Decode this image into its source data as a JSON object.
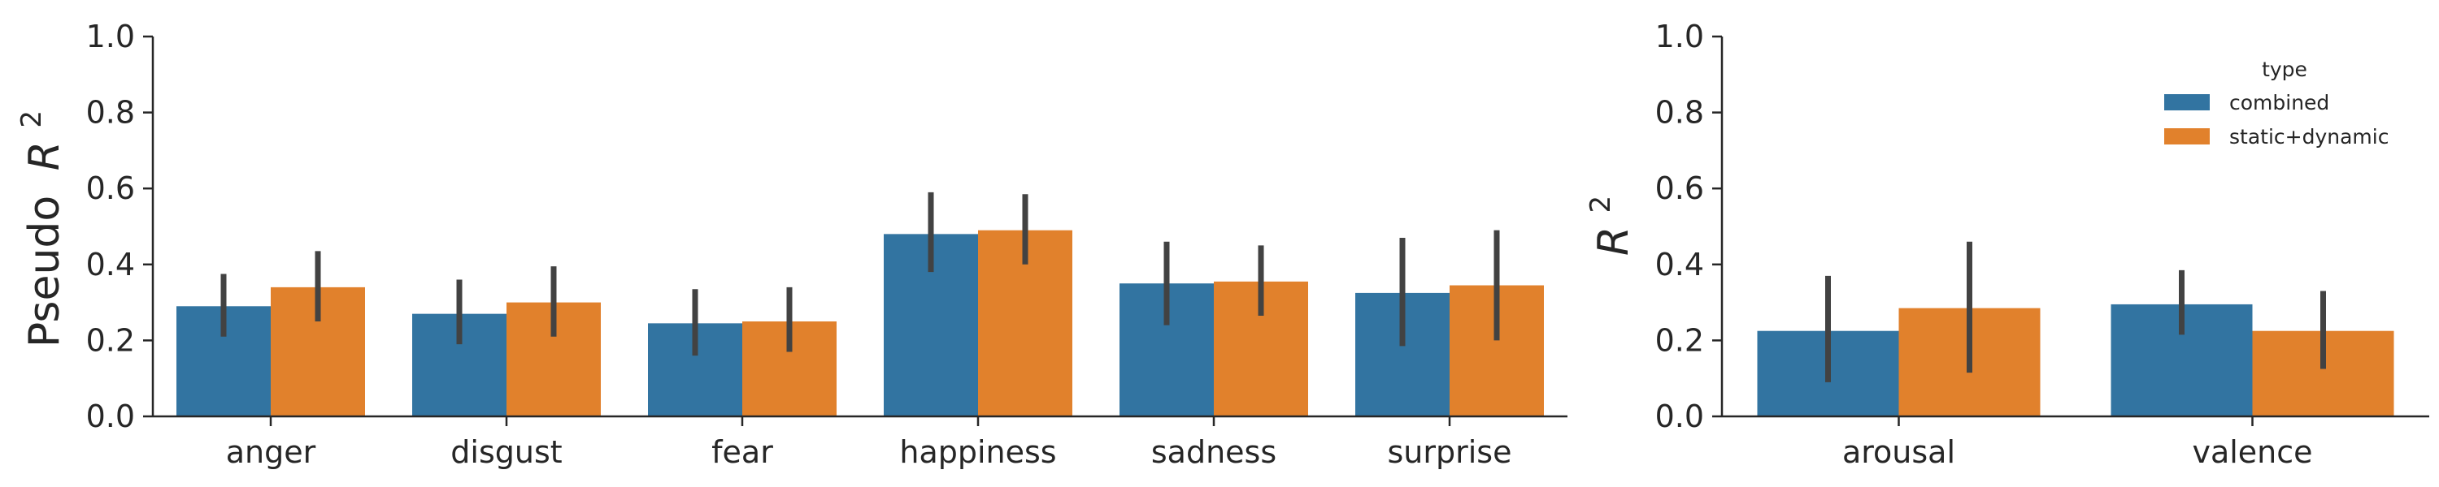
{
  "colors": {
    "combined": "#3274a1",
    "static_dynamic": "#e1812c",
    "errorbar": "#424242",
    "axis": "#262626"
  },
  "chart_data": [
    {
      "type": "bar",
      "title": "",
      "xlabel": "",
      "ylabel": "Pseudo",
      "ylabel_math": "R",
      "ylabel_sup": "2",
      "ylim": [
        0,
        1.0
      ],
      "yticks": [
        "0.0",
        "0.2",
        "0.4",
        "0.6",
        "0.8",
        "1.0"
      ],
      "grid": false,
      "categories": [
        "anger",
        "disgust",
        "fear",
        "happiness",
        "sadness",
        "surprise"
      ],
      "series": [
        {
          "name": "combined",
          "values": [
            0.29,
            0.27,
            0.245,
            0.48,
            0.35,
            0.325
          ],
          "ci_low": [
            0.21,
            0.19,
            0.16,
            0.38,
            0.24,
            0.185
          ],
          "ci_high": [
            0.375,
            0.36,
            0.335,
            0.59,
            0.46,
            0.47
          ]
        },
        {
          "name": "static+dynamic",
          "values": [
            0.34,
            0.3,
            0.25,
            0.49,
            0.355,
            0.345
          ],
          "ci_low": [
            0.25,
            0.21,
            0.17,
            0.4,
            0.265,
            0.2
          ],
          "ci_high": [
            0.435,
            0.395,
            0.34,
            0.585,
            0.45,
            0.49
          ]
        }
      ]
    },
    {
      "type": "bar",
      "title": "",
      "xlabel": "",
      "ylabel": "",
      "ylabel_math": "R",
      "ylabel_sup": "2",
      "ylim": [
        0,
        1.0
      ],
      "yticks": [
        "0.0",
        "0.2",
        "0.4",
        "0.6",
        "0.8",
        "1.0"
      ],
      "grid": false,
      "categories": [
        "arousal",
        "valence"
      ],
      "series": [
        {
          "name": "combined",
          "values": [
            0.225,
            0.295
          ],
          "ci_low": [
            0.09,
            0.215
          ],
          "ci_high": [
            0.37,
            0.385
          ]
        },
        {
          "name": "static+dynamic",
          "values": [
            0.285,
            0.225
          ],
          "ci_low": [
            0.115,
            0.125
          ],
          "ci_high": [
            0.46,
            0.33
          ]
        }
      ],
      "legend": {
        "title": "type",
        "position": "top-right",
        "entries": [
          "combined",
          "static+dynamic"
        ]
      }
    }
  ]
}
